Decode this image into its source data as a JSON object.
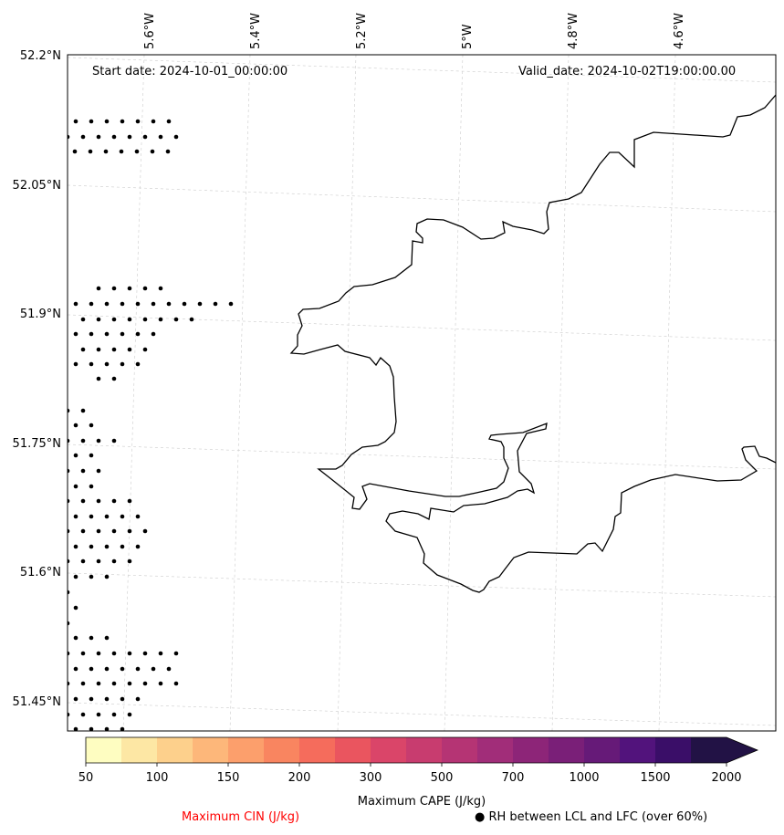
{
  "map": {
    "start_date": "Start date: 2024-10-01_00:00:00",
    "valid_date": "Valid_date: 2024-10-02T19:00:00.00",
    "lon_labels": [
      "5.6°W",
      "5.4°W",
      "5.2°W",
      "5°W",
      "4.8°W",
      "4.6°W"
    ],
    "lat_labels": [
      "52.2°N",
      "52.05°N",
      "51.9°N",
      "51.75°N",
      "51.6°N",
      "51.45°N"
    ],
    "coast_color": "#000000",
    "grid_color": "#cccccc"
  },
  "colorbar": {
    "label": "Maximum CAPE (J/kg)",
    "ticks": [
      "50",
      "100",
      "150",
      "200",
      "300",
      "500",
      "700",
      "1000",
      "1500",
      "2000"
    ],
    "colors": [
      "#fefdc1",
      "#fde7a4",
      "#fdd08c",
      "#fdb77a",
      "#fc9f6c",
      "#f98560",
      "#f56c5c",
      "#ea555f",
      "#da4569",
      "#c83c6f",
      "#b53474",
      "#a12d79",
      "#8d2578",
      "#7a1f78",
      "#661a78",
      "#52137c",
      "#3a0e68",
      "#221245"
    ],
    "extend": "max"
  },
  "legend": {
    "cin_label": "Maximum CIN (J/kg)",
    "cin_color": "#ff0000",
    "rh_label": "● RH between LCL and LFC (over 60%)"
  }
}
